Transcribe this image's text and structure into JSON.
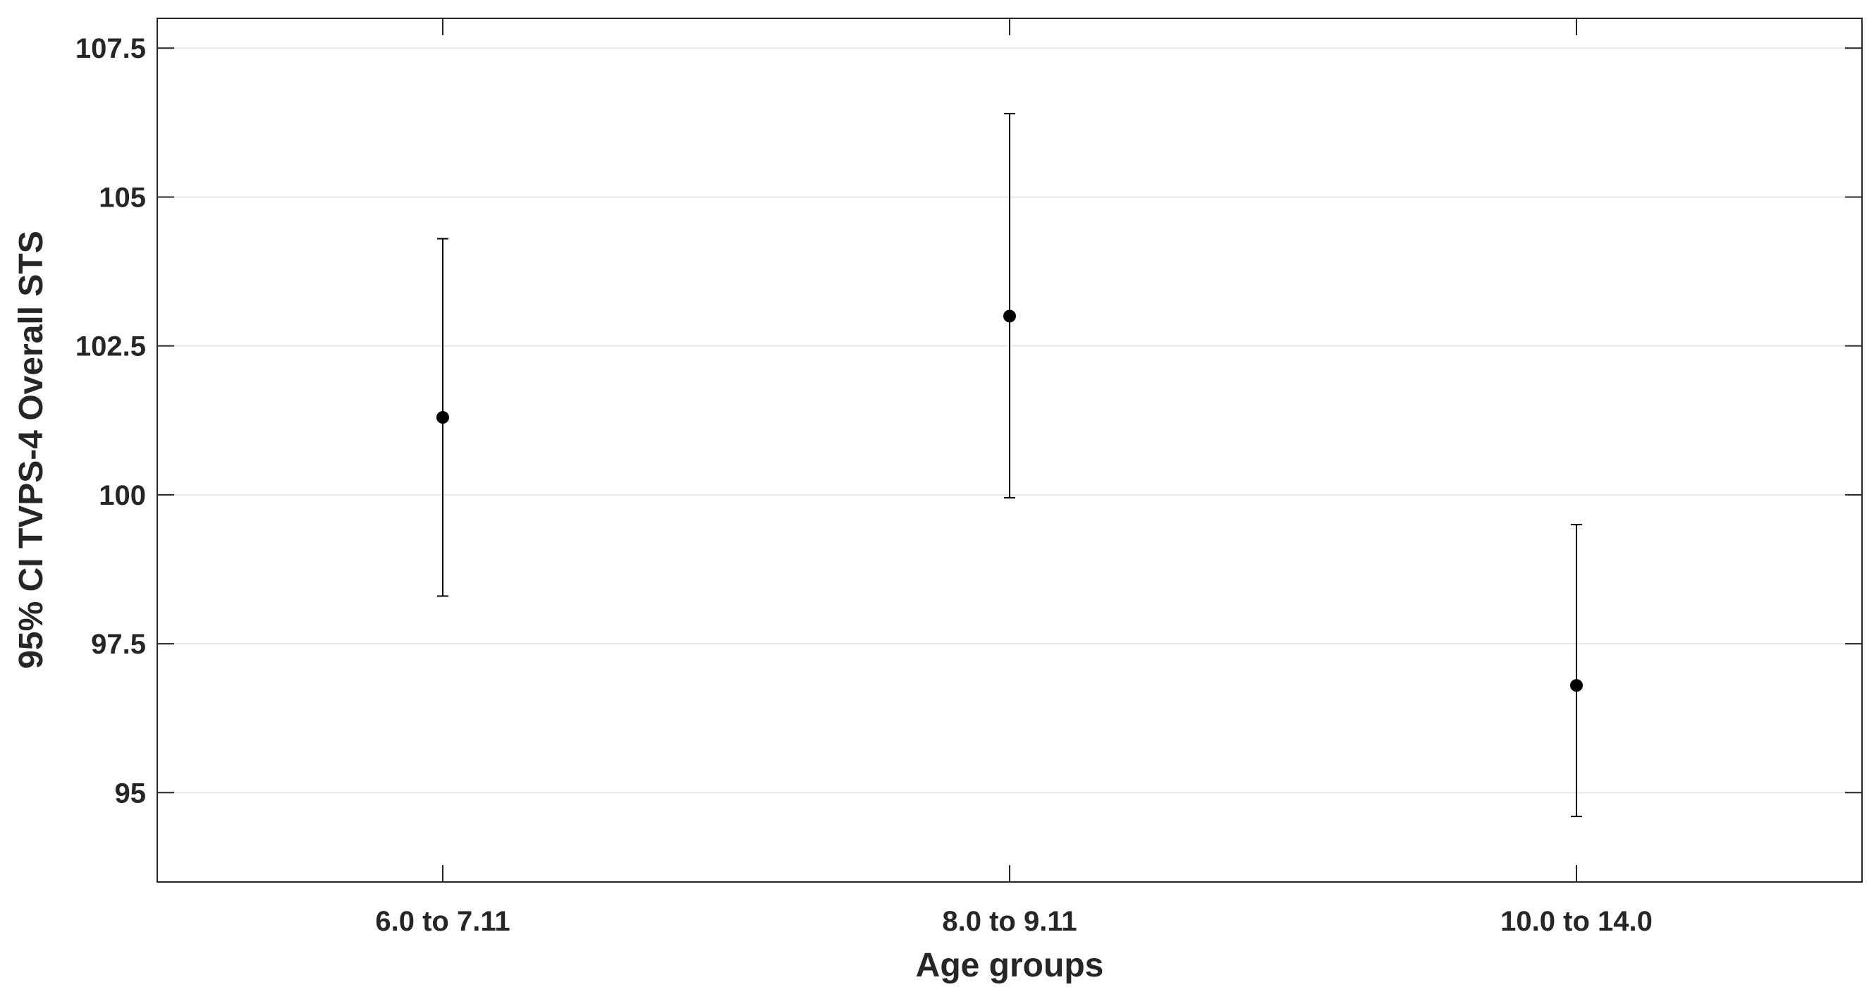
{
  "chart_data": {
    "type": "scatter",
    "title": "",
    "xlabel": "Age groups",
    "ylabel": "95% CI TVPS-4 Overall STS",
    "categories": [
      "6.0 to 7.11",
      "8.0 to 9.11",
      "10.0 to 14.0"
    ],
    "series": [
      {
        "values": [
          101.3,
          103.0,
          96.8
        ],
        "ci_lower": [
          98.3,
          99.95,
          94.6
        ],
        "ci_upper": [
          104.3,
          106.4,
          99.5
        ]
      }
    ],
    "ylim": [
      93.5,
      108.0
    ],
    "yticks": [
      95,
      97.5,
      100,
      102.5,
      105,
      107.5
    ],
    "ytick_labels": [
      "95",
      "97.5",
      "100",
      "102.5",
      "105",
      "107.5"
    ],
    "grid": "horizontal",
    "colors": {
      "marker": "#000000",
      "axis": "#262626",
      "grid": "#e6e6e6"
    }
  }
}
